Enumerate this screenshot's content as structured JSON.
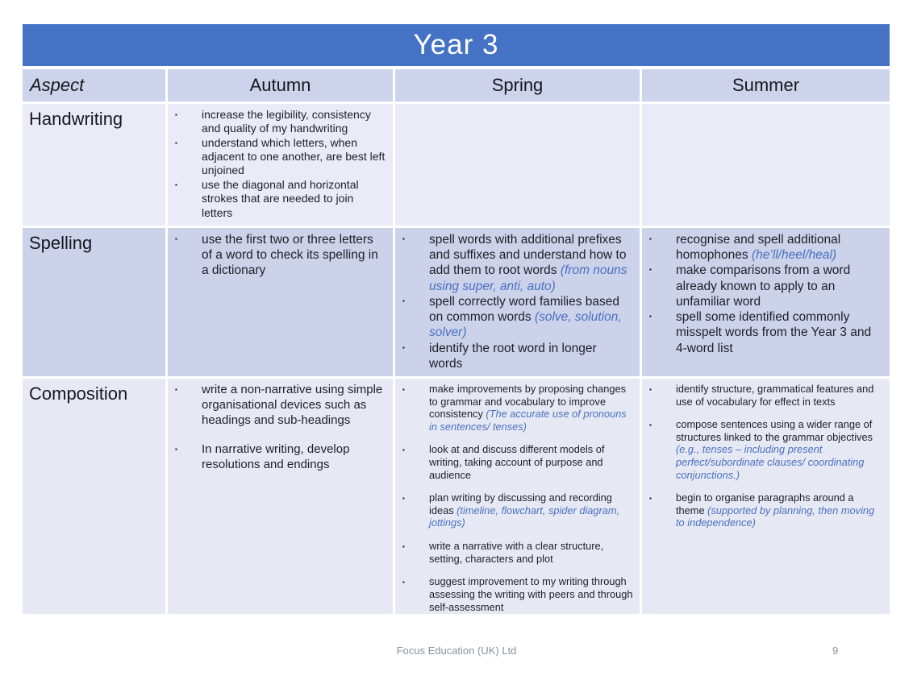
{
  "title": "Year 3",
  "bullet_glyph": "▪",
  "colors": {
    "title_bar_blue": "#4472C4",
    "header_row_bg": "#ccd3ea",
    "light_row_bg": "#e9ecf7",
    "dark_row_bg": "#cbd2ea",
    "composition_row_bg": "#e6e9f4",
    "italic_note_blue": "#4a70c1"
  },
  "table": {
    "headers": [
      "Aspect",
      "Autumn",
      "Spring",
      "Summer"
    ],
    "rows": [
      {
        "aspect": "Handwriting",
        "autumn": [
          [
            {
              "text": "increase the legibility, consistency and quality of my handwriting"
            }
          ],
          [
            {
              "text": "understand which letters, when adjacent to one another, are best left unjoined"
            }
          ],
          [
            {
              "text": "use the diagonal and horizontal strokes that are needed to join letters"
            }
          ]
        ],
        "spring": [],
        "summer": []
      },
      {
        "aspect": "Spelling",
        "autumn": [
          [
            {
              "text": "use the first two or three letters of a word to check its spelling in a dictionary"
            }
          ]
        ],
        "spring": [
          [
            {
              "text": "spell words with additional prefixes and suffixes and understand how to add them to root words "
            },
            {
              "text": "(from nouns using super, anti, auto)",
              "italic": true
            }
          ],
          [
            {
              "text": "spell correctly word families based on common words "
            },
            {
              "text": "(solve, solution, solver)",
              "italic": true
            }
          ],
          [
            {
              "text": "identify the root word in longer words"
            }
          ]
        ],
        "summer": [
          [
            {
              "text": "recognise and spell additional homophones "
            },
            {
              "text": "(he’ll/heel/heal)",
              "italic": true
            }
          ],
          [
            {
              "text": "make comparisons from a word already known to apply to an unfamiliar word"
            }
          ],
          [
            {
              "text": "spell some identified commonly misspelt words from the Year 3 and 4-word list"
            }
          ]
        ]
      },
      {
        "aspect": "Composition",
        "autumn": [
          [
            {
              "text": "write a non-narrative using simple organisational devices such as headings and sub-headings"
            }
          ],
          [
            {
              "text": "In narrative writing, develop resolutions and endings"
            }
          ]
        ],
        "spring": [
          [
            {
              "text": "make improvements by proposing changes to grammar and vocabulary to improve consistency "
            },
            {
              "text": "(The accurate use of pronouns in sentences/ tenses)",
              "italic": true
            }
          ],
          [
            {
              "text": "look at and discuss different models of writing, taking account of purpose and audience"
            }
          ],
          [
            {
              "text": "plan writing by discussing and recording ideas "
            },
            {
              "text": "(timeline, flowchart, spider diagram, jottings)",
              "italic": true
            }
          ],
          [
            {
              "text": "write a narrative with a clear structure, setting, characters and plot"
            }
          ],
          [
            {
              "text": "suggest improvement to my writing through assessing the writing with peers and through self-assessment"
            }
          ]
        ],
        "summer": [
          [
            {
              "text": "identify structure, grammatical features and use of vocabulary for effect in texts"
            }
          ],
          [
            {
              "text": "compose sentences using a wider range of structures linked to the grammar objectives "
            },
            {
              "text": "(e.g., tenses – including present perfect/subordinate clauses/ coordinating conjunctions.)",
              "italic": true
            }
          ],
          [
            {
              "text": "begin to organise paragraphs around a theme "
            },
            {
              "text": "(supported by planning, then moving to independence)",
              "italic": true
            }
          ]
        ]
      }
    ]
  },
  "footer": {
    "company": "Focus Education (UK) Ltd",
    "page_number": "9"
  }
}
